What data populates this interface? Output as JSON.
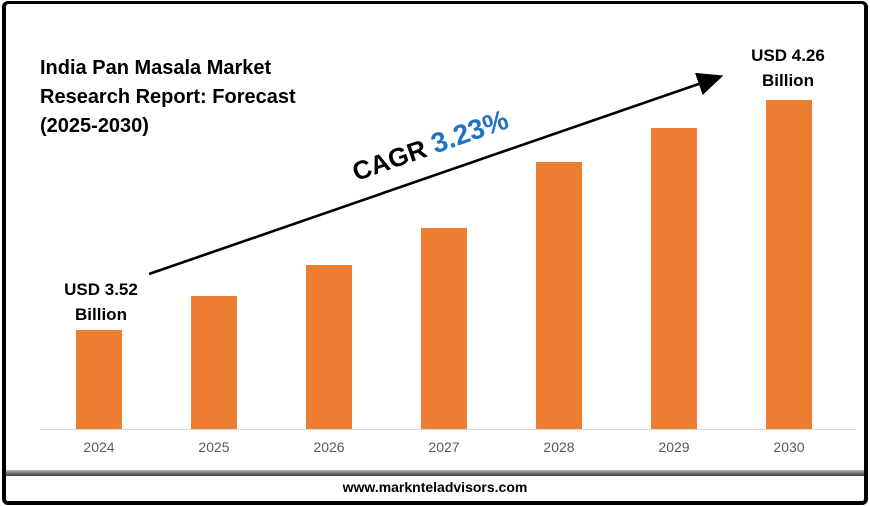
{
  "page": {
    "title": "India Pan Masala Market\nResearch Report: Forecast\n(2025-2030)",
    "footer_url": "www.marknteladvisors.com"
  },
  "annotations": {
    "cagr_prefix": "CAGR ",
    "cagr_value": "3.23%",
    "start_label": "USD 3.52\nBillion",
    "end_label": "USD 4.26\nBillion"
  },
  "colors": {
    "bar": "#ED7D31",
    "cagr_value_text": "#2173BE",
    "axis_line": "#D9D9D9",
    "tick_label": "#595959",
    "frame": "#000000",
    "arrow": "#000000"
  },
  "chart_data": {
    "type": "bar",
    "title": "India Pan Masala Market Research Report: Forecast (2025-2030)",
    "categories": [
      "2024",
      "2025",
      "2026",
      "2027",
      "2028",
      "2029",
      "2030"
    ],
    "values": [
      3.52,
      3.63,
      3.73,
      3.85,
      4.06,
      4.17,
      4.26
    ],
    "unit": "USD Billion",
    "data_labels": {
      "2024": "USD 3.52 Billion",
      "2030": "USD 4.26 Billion"
    },
    "cagr_annotation": "CAGR 3.23%",
    "xlabel": "",
    "ylabel": "",
    "ylim": [
      3.2,
      4.35
    ],
    "y_axis_hidden": true,
    "grid": false,
    "legend": false
  }
}
